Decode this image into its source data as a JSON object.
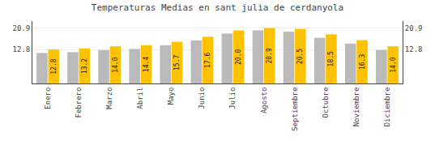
{
  "chart_data": {
    "type": "bar",
    "title": "Temperaturas Medias en sant julia de cerdanyola",
    "categories": [
      "Enero",
      "Febrero",
      "Marzo",
      "Abril",
      "Mayo",
      "Junio",
      "Julio",
      "Agosto",
      "Septiembre",
      "Octubre",
      "Noviembre",
      "Diciembre"
    ],
    "series": [
      {
        "color": "#BABABA",
        "values": [
          11.5,
          11.8,
          12.6,
          13.0,
          14.4,
          16.2,
          18.8,
          20.0,
          19.5,
          17.2,
          15.0,
          12.6
        ]
      },
      {
        "color": "#FFC200",
        "values": [
          12.8,
          13.2,
          14.0,
          14.4,
          15.7,
          17.6,
          20.0,
          20.9,
          20.5,
          18.5,
          16.3,
          14.0
        ],
        "data_labels": true,
        "value_labels": [
          "12.8",
          "13.2",
          "14.0",
          "14.4",
          "15.7",
          "17.6",
          "20.0",
          "20.9",
          "20.5",
          "18.5",
          "16.3",
          "14.0"
        ]
      }
    ],
    "ylim": [
      0,
      23.5
    ],
    "yticks": [
      12.8,
      20.9
    ],
    "y2lim": [
      0,
      23.5
    ],
    "y2ticks": [
      12.8,
      20.9
    ],
    "grid": true
  }
}
